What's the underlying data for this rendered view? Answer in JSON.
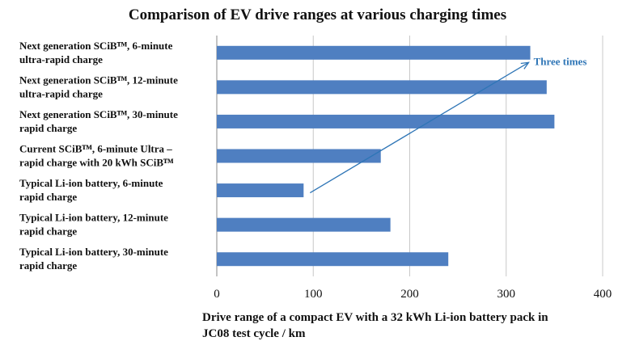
{
  "chart_data": {
    "type": "bar",
    "orientation": "horizontal",
    "title": "Comparison of EV drive ranges at various charging times",
    "xlabel": "Drive range of a compact EV with a 32 kWh Li-ion battery pack in JC08 test cycle / km",
    "xlabel_lines": [
      "Drive range of a compact EV with a 32 kWh Li-ion battery pack in",
      "JC08 test cycle / km"
    ],
    "categories": [
      [
        "Next generation SCiBᵀᴹ, 6-minute",
        "ultra-rapid charge"
      ],
      [
        "Next generation SCiBᵀᴹ, 12-minute",
        "ultra-rapid charge"
      ],
      [
        "Next generation SCiBᵀᴹ, 30-minute",
        "rapid charge"
      ],
      [
        "Current SCiBᵀᴹ, 6-minute Ultra –",
        "rapid charge with 20 kWh SCiBᵀᴹ"
      ],
      [
        "Typical Li-ion battery, 6-minute",
        "rapid charge"
      ],
      [
        "Typical Li-ion battery, 12-minute",
        "rapid charge"
      ],
      [
        "Typical Li-ion battery, 30-minute",
        "rapid charge"
      ]
    ],
    "values": [
      325,
      342,
      350,
      170,
      90,
      180,
      240
    ],
    "xlim": [
      0,
      400
    ],
    "xticks": [
      "0",
      "100",
      "200",
      "300",
      "400"
    ],
    "grid": true,
    "bar_color": "#4f7fc1",
    "annotation": {
      "text": "Three times",
      "color": "#2e75b6",
      "from_value": 90,
      "to_value": 325
    }
  }
}
